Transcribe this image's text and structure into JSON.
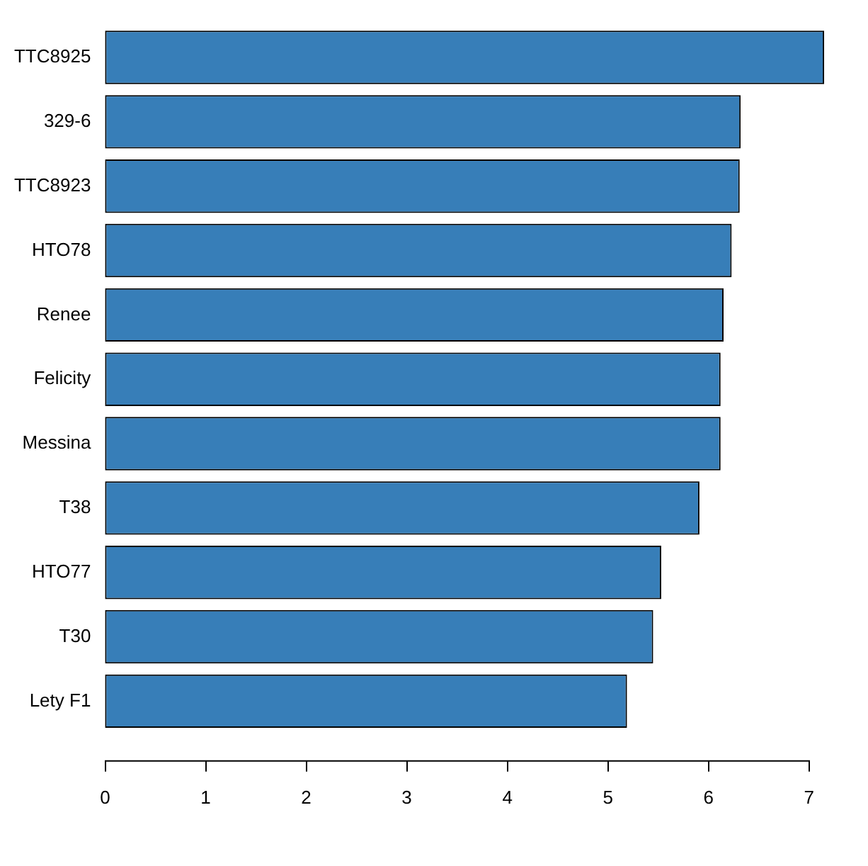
{
  "chart_data": {
    "type": "bar",
    "orientation": "horizontal",
    "categories": [
      "TTC8925",
      "329-6",
      "TTC8923",
      "HTO78",
      "Renee",
      "Felicity",
      "Messina",
      "T38",
      "HTO77",
      "T30",
      "Lety F1"
    ],
    "values": [
      7.15,
      6.32,
      6.31,
      6.23,
      6.15,
      6.12,
      6.12,
      5.91,
      5.53,
      5.45,
      5.19
    ],
    "color": "#377eb8",
    "xlim": [
      0,
      7.15
    ],
    "xticks": [
      0,
      1,
      2,
      3,
      4,
      5,
      6,
      7
    ],
    "grid": false,
    "legend": false
  }
}
